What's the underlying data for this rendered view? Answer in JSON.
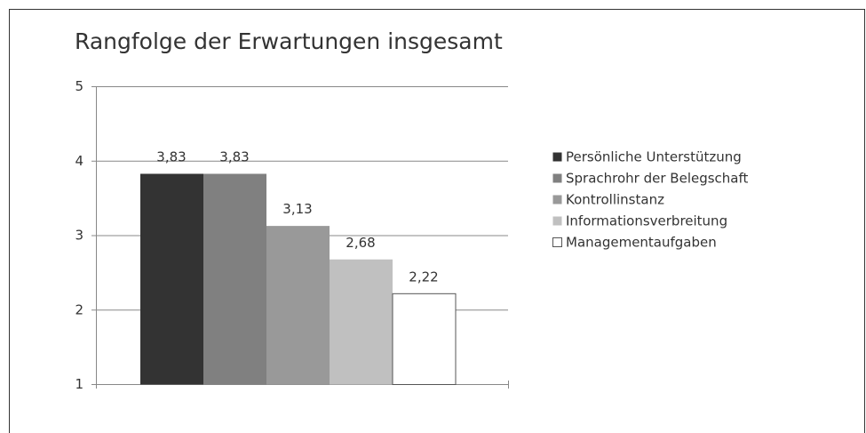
{
  "chart_data": {
    "type": "bar",
    "title": "Rangfolge der Erwartungen insgesamt",
    "categories": [
      null
    ],
    "series": [
      {
        "name": "Persönliche Unterstützung",
        "color": "#333333",
        "values": [
          3.83
        ],
        "value_labels": [
          "3,83"
        ]
      },
      {
        "name": "Sprachrohr der Belegschaft",
        "color": "#808080",
        "values": [
          3.83
        ],
        "value_labels": [
          "3,83"
        ]
      },
      {
        "name": "Kontrollinstanz",
        "color": "#999999",
        "values": [
          3.13
        ],
        "value_labels": [
          "3,13"
        ]
      },
      {
        "name": "Informationsverbreitung",
        "color": "#c0c0c0",
        "values": [
          2.68
        ],
        "value_labels": [
          "2,68"
        ]
      },
      {
        "name": "Managementaufgaben",
        "color": "#ffffff",
        "values": [
          2.22
        ],
        "value_labels": [
          "2,22"
        ]
      }
    ],
    "ylim": [
      1,
      5
    ],
    "yticks": [
      1,
      2,
      3,
      4,
      5
    ],
    "grid": true,
    "legend": "right"
  }
}
